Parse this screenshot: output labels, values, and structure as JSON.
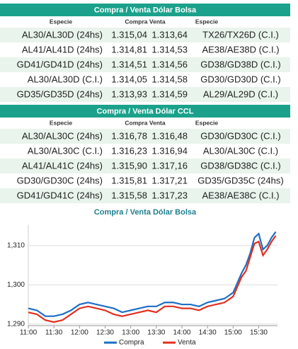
{
  "tables": [
    {
      "title": "Compra / Venta Dólar Bolsa",
      "header": [
        "Especie",
        "Compra Venta",
        "Especie"
      ],
      "rows": [
        [
          "AL30/AL30D (24hs)",
          "1.315,04",
          "1.313,64",
          "TX26/TX26D (C.I.)"
        ],
        [
          "AL41/AL41D (24hs)",
          "1.314,81",
          "1.314,53",
          "AE38/AE38D (C.I.)"
        ],
        [
          "GD41/GD41D (24hs)",
          "1.314,51",
          "1.314,56",
          "GD38/GD38D (C.I.)"
        ],
        [
          "AL30/AL30D (C.I.)",
          "1.314,05",
          "1.314,58",
          "GD30/GD30D (C.I.)"
        ],
        [
          "GD35/GD35D (24hs)",
          "1.313,93",
          "1.314,59",
          "AL29/AL29D (C.I.)"
        ]
      ]
    },
    {
      "title": "Compra / Venta Dólar CCL",
      "header": [
        "Especie",
        "Compra Venta",
        "Especie"
      ],
      "rows": [
        [
          "AL30/AL30C (24hs)",
          "1.316,78",
          "1.316,48",
          "GD30/GD30C (C.I.)"
        ],
        [
          "AL30/AL30C (C.I.)",
          "1.316,23",
          "1.316,94",
          "AL30/AL30C (C.I.)"
        ],
        [
          "AL41/AL41C (24hs)",
          "1.315,90",
          "1.317,16",
          "GD38/GD38C (C.I.)"
        ],
        [
          "GD30/GD30C (24hs)",
          "1.315,81",
          "1.317,21",
          "GD35/GD35C (24hs)"
        ],
        [
          "GD41/GD41C (24hs)",
          "1.315,58",
          "1.317,23",
          "AE38/AE38C (C.I.)"
        ]
      ]
    }
  ],
  "chart_data": {
    "type": "line",
    "title": "Compra / Venta Dólar Bolsa",
    "x": [
      660,
      670,
      680,
      690,
      700,
      710,
      720,
      730,
      740,
      750,
      760,
      770,
      780,
      790,
      800,
      810,
      820,
      830,
      840,
      850,
      860,
      870,
      880,
      890,
      900,
      910,
      915,
      920,
      925,
      930,
      935,
      940,
      945,
      950
    ],
    "series": [
      {
        "name": "Compra",
        "color": "#1f6fc5",
        "values": [
          1294,
          1293.5,
          1292,
          1292,
          1292.5,
          1293.5,
          1295,
          1295.5,
          1295,
          1294.5,
          1294,
          1293,
          1293.5,
          1294,
          1294.5,
          1294.5,
          1295.5,
          1295.5,
          1295,
          1295,
          1294.5,
          1295.5,
          1296,
          1296.5,
          1298,
          1303,
          1305,
          1308,
          1312,
          1313,
          1309,
          1310,
          1312,
          1313.5
        ]
      },
      {
        "name": "Venta",
        "color": "#e0301e",
        "values": [
          1293,
          1292.5,
          1291,
          1290.5,
          1291,
          1292.5,
          1294,
          1294.5,
          1294,
          1293.5,
          1292.5,
          1292,
          1292.5,
          1293,
          1293.5,
          1293,
          1294.5,
          1294.5,
          1294,
          1294,
          1293.5,
          1294.5,
          1295,
          1295.5,
          1297,
          1302,
          1303.5,
          1307,
          1310.5,
          1311,
          1307.5,
          1309,
          1311,
          1312.5
        ]
      }
    ],
    "xlim": [
      660,
      952
    ],
    "xticks": [
      {
        "value": 660,
        "label": "11:00"
      },
      {
        "value": 690,
        "label": "11:30"
      },
      {
        "value": 720,
        "label": "12:00"
      },
      {
        "value": 750,
        "label": "12:30"
      },
      {
        "value": 780,
        "label": "13:00"
      },
      {
        "value": 810,
        "label": "13:30"
      },
      {
        "value": 840,
        "label": "14:00"
      },
      {
        "value": 870,
        "label": "14:30"
      },
      {
        "value": 900,
        "label": "15:00"
      },
      {
        "value": 930,
        "label": "15:30"
      }
    ],
    "ylim": [
      1289.6,
      1315.2
    ],
    "yticks": [
      {
        "value": 1290,
        "label": "1,290"
      },
      {
        "value": 1300,
        "label": "1,300"
      },
      {
        "value": 1310,
        "label": "1,310"
      }
    ],
    "grid": true
  }
}
